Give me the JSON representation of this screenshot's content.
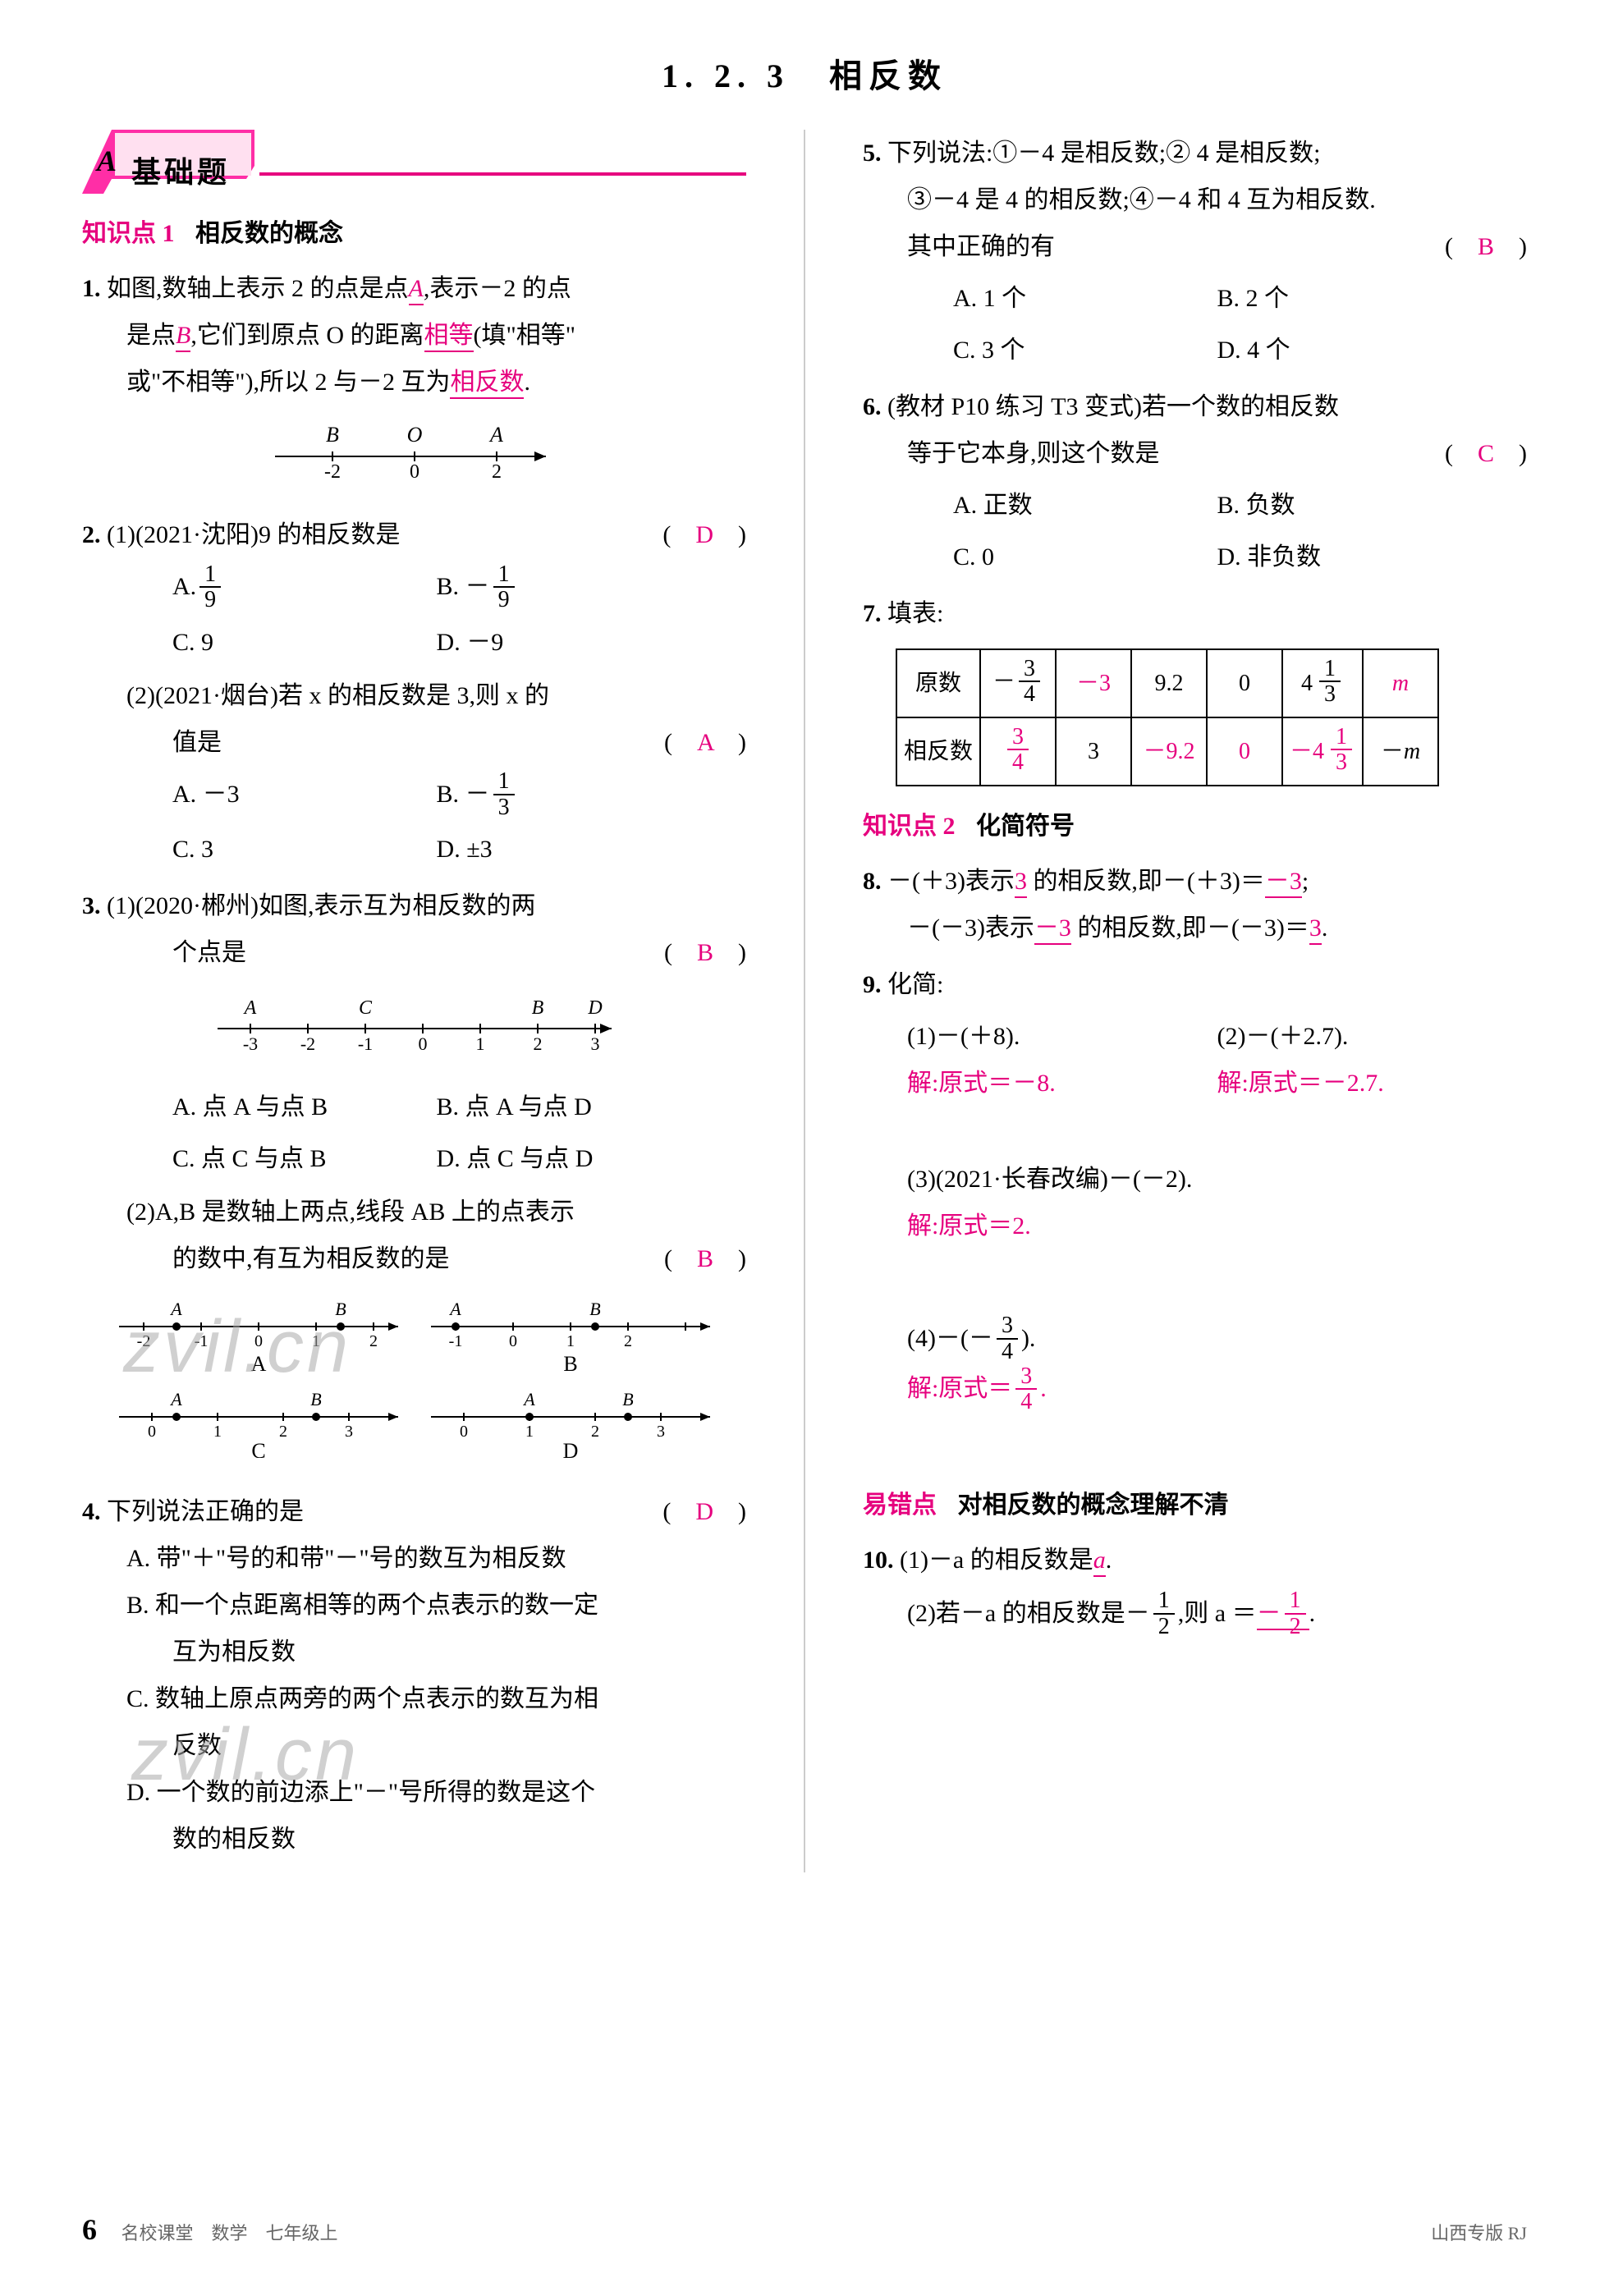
{
  "title": "1. 2. 3　相反数",
  "sectionA": {
    "letter": "A",
    "label": "基础题"
  },
  "kp1": {
    "prefix": "知识点 1",
    "title": "相反数的概念"
  },
  "kp2": {
    "prefix": "知识点 2",
    "title": "化简符号"
  },
  "errPoint": {
    "prefix": "易错点",
    "title": "对相反数的概念理解不清"
  },
  "q1": {
    "num": "1.",
    "t1": "如图,数轴上表示 2 的点是点",
    "ansA": "A",
    "t2": ",表示－2 的点",
    "t3": "是点",
    "ansB": "B",
    "t4": ",它们到原点 O 的距离",
    "ansEq": "相等",
    "t5": "(填\"相等\"",
    "t6": "或\"不相等\"),所以 2 与－2 互为",
    "ansOpp": "相反数",
    "t7": ".",
    "numberline": {
      "labels_top": [
        "B",
        "O",
        "A"
      ],
      "labels_bot": [
        "-2",
        "0",
        "2"
      ],
      "stroke": "#000000"
    }
  },
  "q2": {
    "num": "2.",
    "p1": {
      "head": "(1)(2021·沈阳)9 的相反数是",
      "ans": "D",
      "A": "A.",
      "B": "B. －",
      "C": "C. 9",
      "D": "D. －9",
      "fracA_n": "1",
      "fracA_d": "9",
      "fracB_n": "1",
      "fracB_d": "9"
    },
    "p2": {
      "head1": "(2)(2021·烟台)若 x 的相反数是 3,则 x 的",
      "head2": "值是",
      "ans": "A",
      "A": "A. －3",
      "B": "B. －",
      "C": "C. 3",
      "D": "D. ±3",
      "fracB_n": "1",
      "fracB_d": "3"
    }
  },
  "q3": {
    "num": "3.",
    "p1": {
      "head1": "(1)(2020·郴州)如图,表示互为相反数的两",
      "head2": "个点是",
      "ans": "B",
      "A": "A. 点 A 与点 B",
      "B": "B. 点 A 与点 D",
      "C": "C. 点 C 与点 B",
      "D": "D. 点 C 与点 D",
      "nl": {
        "labels_top": [
          "A",
          "C",
          "B",
          "D"
        ],
        "ticks": [
          "-3",
          "-2",
          "-1",
          "0",
          "1",
          "2",
          "3"
        ],
        "pos_top": [
          -3,
          -1,
          2,
          3
        ]
      }
    },
    "p2": {
      "head1": "(2)A,B 是数轴上两点,线段 AB 上的点表示",
      "head2": "的数中,有互为相反数的是",
      "ans": "B",
      "labels": {
        "A": "A",
        "B": "B",
        "C": "C",
        "D": "D"
      }
    }
  },
  "q4": {
    "num": "4.",
    "head": "下列说法正确的是",
    "ans": "D",
    "A": "A. 带\"＋\"号的和带\"－\"号的数互为相反数",
    "B1": "B. 和一个点距离相等的两个点表示的数一定",
    "B2": "互为相反数",
    "C1": "C. 数轴上原点两旁的两个点表示的数互为相",
    "C2": "反数",
    "D1": "D. 一个数的前边添上\"－\"号所得的数是这个",
    "D2": "数的相反数"
  },
  "q5": {
    "num": "5.",
    "head1": "下列说法:①－4 是相反数;② 4 是相反数;",
    "head2": "③－4 是 4 的相反数;④－4 和 4 互为相反数.",
    "head3": "其中正确的有",
    "ans": "B",
    "A": "A. 1 个",
    "B": "B. 2 个",
    "C": "C. 3 个",
    "D": "D. 4 个"
  },
  "q6": {
    "num": "6.",
    "head1": "(教材 P10 练习 T3 变式)若一个数的相反数",
    "head2": "等于它本身,则这个数是",
    "ans": "C",
    "A": "A. 正数",
    "B": "B. 负数",
    "C": "C. 0",
    "D": "D. 非负数"
  },
  "q7": {
    "num": "7.",
    "head": "填表:",
    "table": {
      "r1h": "原数",
      "r2h": "相反数",
      "r1": [
        {
          "type": "frac",
          "sign": "－",
          "n": "3",
          "d": "4",
          "pink": false
        },
        {
          "type": "plain",
          "text": "－3",
          "pink": true
        },
        {
          "type": "plain",
          "text": "9.2",
          "pink": false
        },
        {
          "type": "plain",
          "text": "0",
          "pink": false
        },
        {
          "type": "mixed",
          "whole": "4",
          "n": "1",
          "d": "3",
          "pink": false
        },
        {
          "type": "italic",
          "text": "m",
          "pink": true
        }
      ],
      "r2": [
        {
          "type": "frac",
          "sign": "",
          "n": "3",
          "d": "4",
          "pink": true
        },
        {
          "type": "plain",
          "text": "3",
          "pink": false
        },
        {
          "type": "plain",
          "text": "－9.2",
          "pink": true
        },
        {
          "type": "plain",
          "text": "0",
          "pink": true
        },
        {
          "type": "mixed",
          "sign": "－",
          "whole": "4",
          "n": "1",
          "d": "3",
          "pink": true
        },
        {
          "type": "italicneg",
          "text": "－m",
          "pink": false
        }
      ]
    }
  },
  "q8": {
    "num": "8.",
    "t1": "－(＋3)表示",
    "a1": "3",
    "t2": " 的相反数,即－(＋3)＝",
    "a2": "－3",
    "t3": ";",
    "t4": "－(－3)表示",
    "a3": "－3",
    "t5": " 的相反数,即－(－3)＝",
    "a4": "3",
    "t6": "."
  },
  "q9": {
    "num": "9.",
    "head": "化简:",
    "p1": {
      "q": "(1)－(＋8).",
      "a": "解:原式＝－8."
    },
    "p2": {
      "q": "(2)－(＋2.7).",
      "a": "解:原式＝－2.7."
    },
    "p3": {
      "q": "(3)(2021·长春改编)－(－2).",
      "a": "解:原式＝2."
    },
    "p4": {
      "q1": "(4)－(－",
      "q2": ").",
      "n": "3",
      "d": "4",
      "a": "解:原式＝",
      "an": "3",
      "ad": "4",
      "adot": "."
    }
  },
  "q10": {
    "num": "10.",
    "p1": {
      "t1": "(1)－a 的相反数是",
      "ans": "a",
      "t2": "."
    },
    "p2": {
      "t1": "(2)若－a 的相反数是－",
      "n": "1",
      "d": "2",
      "t2": ",则 a ＝",
      "sign": "－",
      "an": "1",
      "ad": "2",
      "t3": "."
    }
  },
  "footer": {
    "pageNum": "6",
    "left": "名校课堂　数学　七年级上",
    "right": "山西专版 RJ"
  },
  "watermarks": {
    "w1": "zvil.cn",
    "w2": "zvil.cn"
  },
  "colors": {
    "pink": "#e6007e",
    "text": "#000000",
    "grey": "#aaaaaa"
  }
}
